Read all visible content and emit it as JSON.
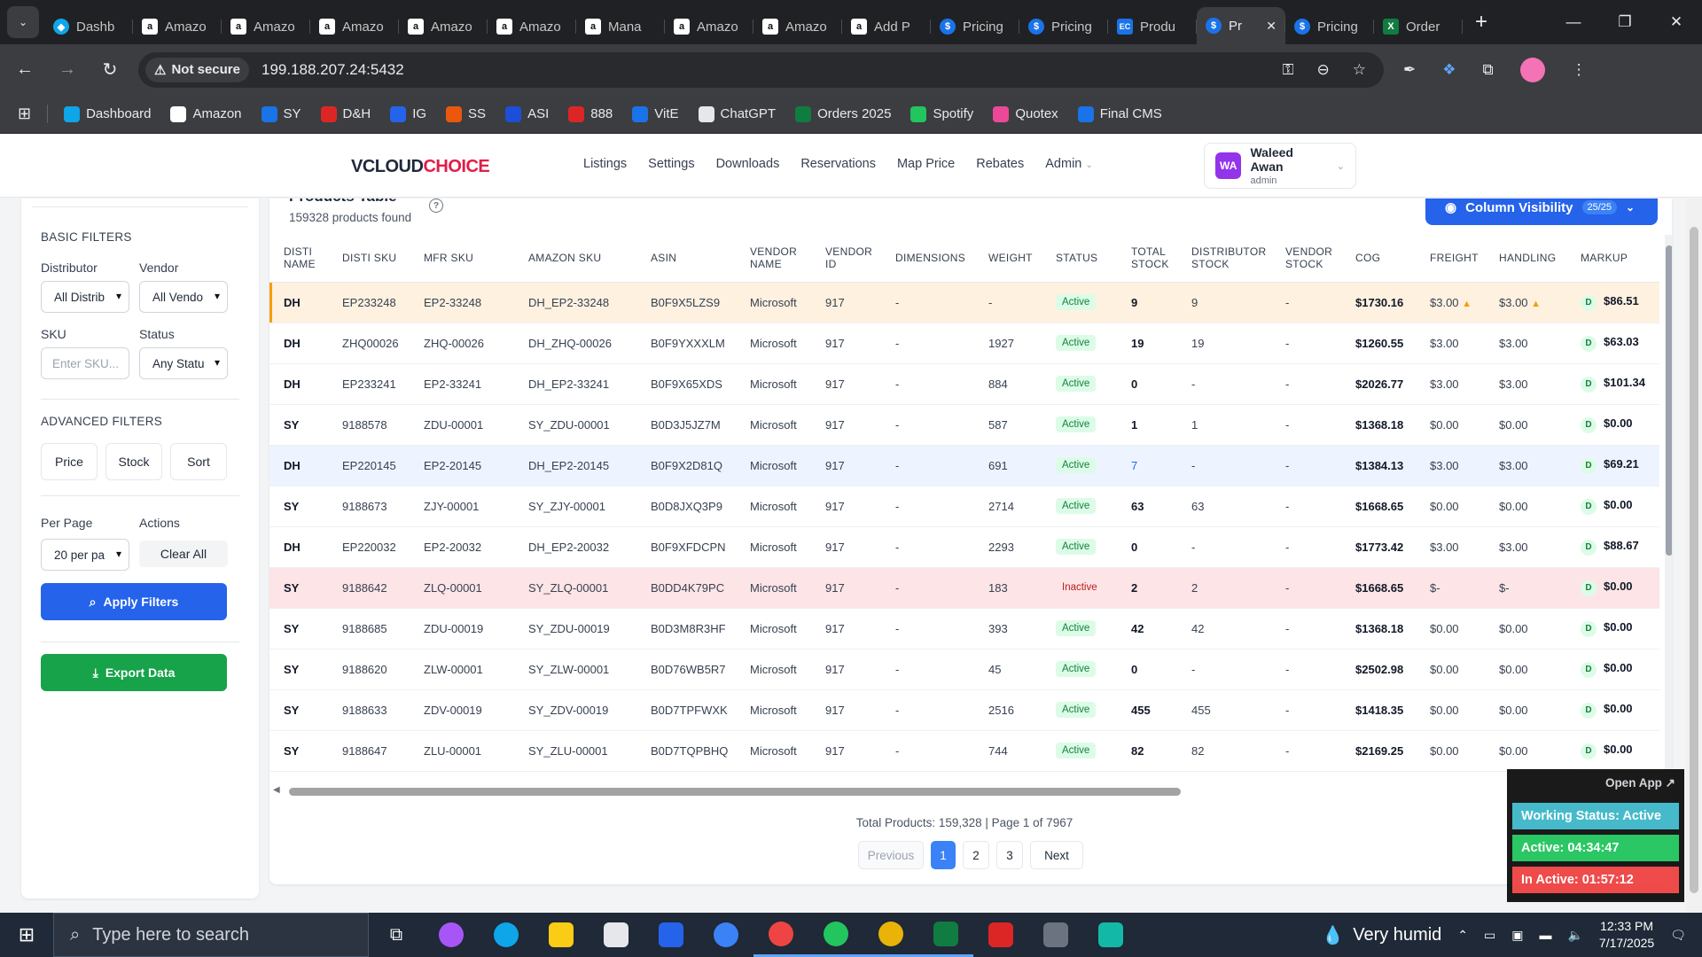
{
  "browser": {
    "tabs": [
      {
        "title": "Dashb",
        "icon": "dashboard-icon",
        "active": false
      },
      {
        "title": "Amazo",
        "icon": "amazon-icon",
        "active": false
      },
      {
        "title": "Amazo",
        "icon": "amazon-icon",
        "active": false
      },
      {
        "title": "Amazo",
        "icon": "amazon-icon",
        "active": false
      },
      {
        "title": "Amazo",
        "icon": "amazon-icon",
        "active": false
      },
      {
        "title": "Amazo",
        "icon": "amazon-icon",
        "active": false
      },
      {
        "title": "Mana",
        "icon": "amazon-icon",
        "active": false
      },
      {
        "title": "Amazo",
        "icon": "amazon-icon",
        "active": false
      },
      {
        "title": "Amazo",
        "icon": "amazon-icon",
        "active": false
      },
      {
        "title": "Add P",
        "icon": "amazon-icon",
        "active": false
      },
      {
        "title": "Pricing",
        "icon": "dollar-icon",
        "active": false
      },
      {
        "title": "Pricing",
        "icon": "dollar-icon",
        "active": false
      },
      {
        "title": "Produ",
        "icon": "ec-icon",
        "active": false
      },
      {
        "title": "Pr",
        "icon": "dollar-icon",
        "active": true
      },
      {
        "title": "Pricing",
        "icon": "dollar-icon",
        "active": false
      },
      {
        "title": "Order",
        "icon": "excel-icon",
        "active": false
      }
    ],
    "security_label": "Not secure",
    "url": "199.188.207.24:5432",
    "bookmarks": [
      {
        "label": "Dashboard",
        "icon": "dashboard-icon",
        "color": "#0ea5e9"
      },
      {
        "label": "Amazon",
        "icon": "amazon-icon",
        "color": "#ffffff"
      },
      {
        "label": "SY",
        "icon": "ec-icon",
        "color": "#1a73e8"
      },
      {
        "label": "D&H",
        "icon": "dh-icon",
        "color": "#dc2626"
      },
      {
        "label": "IG",
        "icon": "ig-icon",
        "color": "#2563eb"
      },
      {
        "label": "SS",
        "icon": "ss-icon",
        "color": "#ea580c"
      },
      {
        "label": "ASI",
        "icon": "asi-icon",
        "color": "#1d4ed8"
      },
      {
        "label": "888",
        "icon": "888-icon",
        "color": "#dc2626"
      },
      {
        "label": "VitE",
        "icon": "dollar-icon",
        "color": "#1a73e8"
      },
      {
        "label": "ChatGPT",
        "icon": "chatgpt-icon",
        "color": "#e5e7eb"
      },
      {
        "label": "Orders 2025",
        "icon": "excel-icon",
        "color": "#107c41"
      },
      {
        "label": "Spotify",
        "icon": "spotify-icon",
        "color": "#22c55e"
      },
      {
        "label": "Quotex",
        "icon": "quotex-icon",
        "color": "#ec4899"
      },
      {
        "label": "Final CMS",
        "icon": "dollar-icon",
        "color": "#1a73e8"
      }
    ]
  },
  "app": {
    "logo_part1": "V",
    "logo_part2": "CLOUD",
    "logo_part3": "CHOICE",
    "nav": [
      "Listings",
      "Settings",
      "Downloads",
      "Reservations",
      "Map Price",
      "Rebates",
      "Admin"
    ],
    "user": {
      "initials": "WA",
      "name": "Waleed Awan",
      "role": "admin"
    }
  },
  "filters": {
    "basic_title": "BASIC FILTERS",
    "distributor_label": "Distributor",
    "distributor_value": "All Distrib",
    "vendor_label": "Vendor",
    "vendor_value": "All Vendo",
    "sku_label": "SKU",
    "sku_placeholder": "Enter SKU...",
    "status_label": "Status",
    "status_value": "Any Statu",
    "advanced_title": "ADVANCED FILTERS",
    "adv_buttons": [
      "Price",
      "Stock",
      "Sort"
    ],
    "per_page_label": "Per Page",
    "per_page_value": "20 per pa",
    "actions_label": "Actions",
    "clear_label": "Clear All",
    "apply_label": "Apply Filters",
    "export_label": "Export Data"
  },
  "products": {
    "title": "Products Table",
    "count_text": "159328 products found",
    "column_visibility_label": "Column Visibility",
    "column_visibility_count": "25/25",
    "columns": [
      "DISTI NAME",
      "DISTI SKU",
      "MFR SKU",
      "AMAZON SKU",
      "ASIN",
      "VENDOR NAME",
      "VENDOR ID",
      "DIMENSIONS",
      "WEIGHT",
      "STATUS",
      "TOTAL STOCK",
      "DISTRIBUTOR STOCK",
      "VENDOR STOCK",
      "COG",
      "FREIGHT",
      "HANDLING",
      "MARKUP"
    ],
    "rows": [
      {
        "disti": "DH",
        "disti_sku": "EP233248",
        "mfr_sku": "EP2-33248",
        "amazon_sku": "DH_EP2-33248",
        "asin": "B0F9X5LZS9",
        "vendor": "Microsoft",
        "vendor_id": "917",
        "dims": "-",
        "weight": "-",
        "status": "Active",
        "total": "9",
        "dist_stock": "9",
        "vendor_stock": "-",
        "cog": "$1730.16",
        "freight": "$3.00",
        "handling": "$3.00",
        "markup_badge": "D",
        "markup": "$86.51",
        "style": "hl",
        "warn": true
      },
      {
        "disti": "DH",
        "disti_sku": "ZHQ00026",
        "mfr_sku": "ZHQ-00026",
        "amazon_sku": "DH_ZHQ-00026",
        "asin": "B0F9YXXXLM",
        "vendor": "Microsoft",
        "vendor_id": "917",
        "dims": "-",
        "weight": "1927",
        "status": "Active",
        "total": "19",
        "dist_stock": "19",
        "vendor_stock": "-",
        "cog": "$1260.55",
        "freight": "$3.00",
        "handling": "$3.00",
        "markup_badge": "D",
        "markup": "$63.03",
        "style": "",
        "warn": false
      },
      {
        "disti": "DH",
        "disti_sku": "EP233241",
        "mfr_sku": "EP2-33241",
        "amazon_sku": "DH_EP2-33241",
        "asin": "B0F9X65XDS",
        "vendor": "Microsoft",
        "vendor_id": "917",
        "dims": "-",
        "weight": "884",
        "status": "Active",
        "total": "0",
        "dist_stock": "-",
        "vendor_stock": "-",
        "cog": "$2026.77",
        "freight": "$3.00",
        "handling": "$3.00",
        "markup_badge": "D",
        "markup": "$101.34",
        "style": "",
        "warn": false
      },
      {
        "disti": "SY",
        "disti_sku": "9188578",
        "mfr_sku": "ZDU-00001",
        "amazon_sku": "SY_ZDU-00001",
        "asin": "B0D3J5JZ7M",
        "vendor": "Microsoft",
        "vendor_id": "917",
        "dims": "-",
        "weight": "587",
        "status": "Active",
        "total": "1",
        "dist_stock": "1",
        "vendor_stock": "-",
        "cog": "$1368.18",
        "freight": "$0.00",
        "handling": "$0.00",
        "markup_badge": "D",
        "markup": "$0.00",
        "style": "",
        "warn": false
      },
      {
        "disti": "DH",
        "disti_sku": "EP220145",
        "mfr_sku": "EP2-20145",
        "amazon_sku": "DH_EP2-20145",
        "asin": "B0F9X2D81Q",
        "vendor": "Microsoft",
        "vendor_id": "917",
        "dims": "-",
        "weight": "691",
        "status": "Active",
        "total": "7",
        "dist_stock": "-",
        "vendor_stock": "-",
        "cog": "$1384.13",
        "freight": "$3.00",
        "handling": "$3.00",
        "markup_badge": "D",
        "markup": "$69.21",
        "style": "blue",
        "warn": false
      },
      {
        "disti": "SY",
        "disti_sku": "9188673",
        "mfr_sku": "ZJY-00001",
        "amazon_sku": "SY_ZJY-00001",
        "asin": "B0D8JXQ3P9",
        "vendor": "Microsoft",
        "vendor_id": "917",
        "dims": "-",
        "weight": "2714",
        "status": "Active",
        "total": "63",
        "dist_stock": "63",
        "vendor_stock": "-",
        "cog": "$1668.65",
        "freight": "$0.00",
        "handling": "$0.00",
        "markup_badge": "D",
        "markup": "$0.00",
        "style": "",
        "warn": false
      },
      {
        "disti": "DH",
        "disti_sku": "EP220032",
        "mfr_sku": "EP2-20032",
        "amazon_sku": "DH_EP2-20032",
        "asin": "B0F9XFDCPN",
        "vendor": "Microsoft",
        "vendor_id": "917",
        "dims": "-",
        "weight": "2293",
        "status": "Active",
        "total": "0",
        "dist_stock": "-",
        "vendor_stock": "-",
        "cog": "$1773.42",
        "freight": "$3.00",
        "handling": "$3.00",
        "markup_badge": "D",
        "markup": "$88.67",
        "style": "",
        "warn": false
      },
      {
        "disti": "SY",
        "disti_sku": "9188642",
        "mfr_sku": "ZLQ-00001",
        "amazon_sku": "SY_ZLQ-00001",
        "asin": "B0DD4K79PC",
        "vendor": "Microsoft",
        "vendor_id": "917",
        "dims": "-",
        "weight": "183",
        "status": "Inactive",
        "total": "2",
        "dist_stock": "2",
        "vendor_stock": "-",
        "cog": "$1668.65",
        "freight": "$-",
        "handling": "$-",
        "markup_badge": "D",
        "markup": "$0.00",
        "style": "pink",
        "warn": false
      },
      {
        "disti": "SY",
        "disti_sku": "9188685",
        "mfr_sku": "ZDU-00019",
        "amazon_sku": "SY_ZDU-00019",
        "asin": "B0D3M8R3HF",
        "vendor": "Microsoft",
        "vendor_id": "917",
        "dims": "-",
        "weight": "393",
        "status": "Active",
        "total": "42",
        "dist_stock": "42",
        "vendor_stock": "-",
        "cog": "$1368.18",
        "freight": "$0.00",
        "handling": "$0.00",
        "markup_badge": "D",
        "markup": "$0.00",
        "style": "",
        "warn": false
      },
      {
        "disti": "SY",
        "disti_sku": "9188620",
        "mfr_sku": "ZLW-00001",
        "amazon_sku": "SY_ZLW-00001",
        "asin": "B0D76WB5R7",
        "vendor": "Microsoft",
        "vendor_id": "917",
        "dims": "-",
        "weight": "45",
        "status": "Active",
        "total": "0",
        "dist_stock": "-",
        "vendor_stock": "-",
        "cog": "$2502.98",
        "freight": "$0.00",
        "handling": "$0.00",
        "markup_badge": "D",
        "markup": "$0.00",
        "style": "",
        "warn": false
      },
      {
        "disti": "SY",
        "disti_sku": "9188633",
        "mfr_sku": "ZDV-00019",
        "amazon_sku": "SY_ZDV-00019",
        "asin": "B0D7TPFWXK",
        "vendor": "Microsoft",
        "vendor_id": "917",
        "dims": "-",
        "weight": "2516",
        "status": "Active",
        "total": "455",
        "dist_stock": "455",
        "vendor_stock": "-",
        "cog": "$1418.35",
        "freight": "$0.00",
        "handling": "$0.00",
        "markup_badge": "D",
        "markup": "$0.00",
        "style": "",
        "warn": false
      },
      {
        "disti": "SY",
        "disti_sku": "9188647",
        "mfr_sku": "ZLU-00001",
        "amazon_sku": "SY_ZLU-00001",
        "asin": "B0D7TQPBHQ",
        "vendor": "Microsoft",
        "vendor_id": "917",
        "dims": "-",
        "weight": "744",
        "status": "Active",
        "total": "82",
        "dist_stock": "82",
        "vendor_stock": "-",
        "cog": "$2169.25",
        "freight": "$0.00",
        "handling": "$0.00",
        "markup_badge": "D",
        "markup": "$0.00",
        "style": "",
        "warn": false
      }
    ],
    "total_line": "Total Products: 159,328 | Page 1 of 7967",
    "pager": {
      "previous": "Previous",
      "pages": [
        "1",
        "2",
        "3"
      ],
      "current": "1",
      "next": "Next"
    }
  },
  "widget": {
    "open_app": "Open App ↗",
    "working_status": "Working Status: Active",
    "active": "Active: 04:34:47",
    "inactive": "In Active: 01:57:12",
    "colors": {
      "working": "#3fb8c9",
      "active": "#22c55e",
      "inactive": "#ef4444"
    }
  },
  "taskbar": {
    "search_placeholder": "Type here to search",
    "weather": "Very humid",
    "time": "12:33 PM",
    "date": "7/17/2025"
  }
}
